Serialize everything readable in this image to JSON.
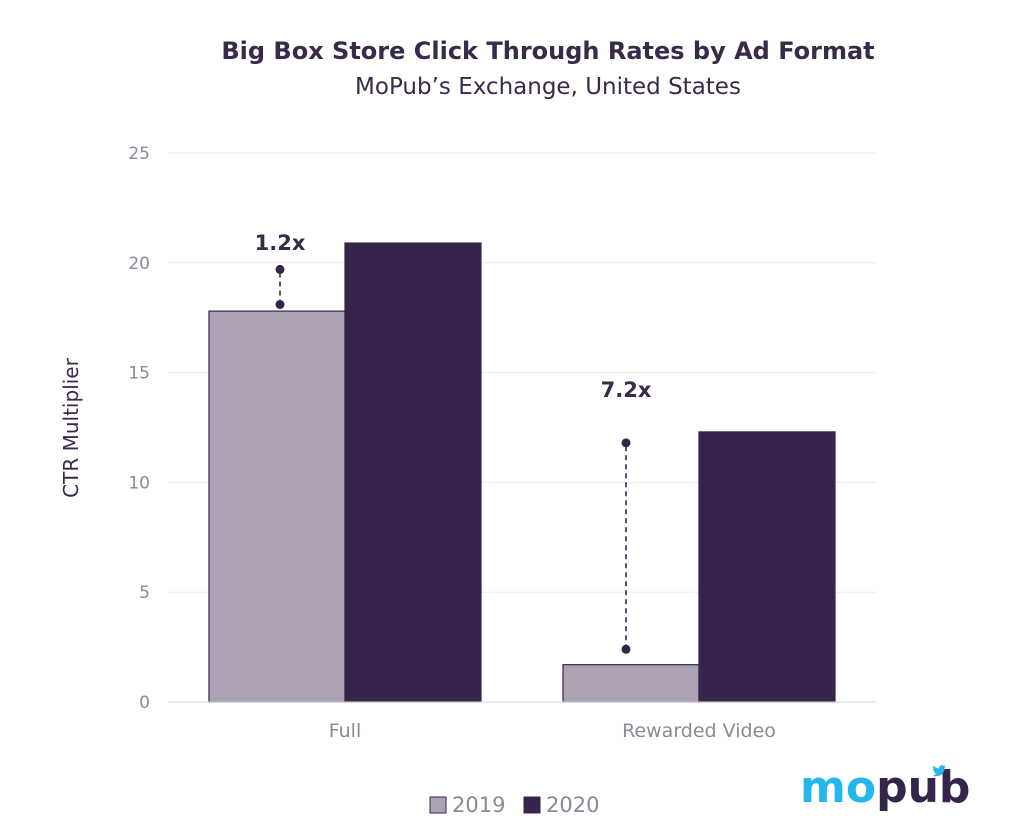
{
  "colors": {
    "series_2019": "#ada2b3",
    "series_2020": "#37244b",
    "text_dark": "#3a2a4a",
    "text_gray": "#8a8a96",
    "grid": "#ececef",
    "logo_blue": "#24b6ec",
    "logo_purple": "#36254a"
  },
  "logo": {
    "text_mo": "mo",
    "text_pub": "pub",
    "icon": "twitter-bird-icon"
  },
  "chart_data": {
    "type": "bar",
    "title": "Big Box Store Click Through Rates by Ad Format",
    "subtitle": "MoPub’s Exchange, United States",
    "xlabel": "",
    "ylabel": "CTR Multiplier",
    "ylim": [
      0,
      25
    ],
    "yticks": [
      "0",
      "5",
      "10",
      "15",
      "20",
      "25"
    ],
    "categories": [
      "Full",
      "Rewarded Video"
    ],
    "series": [
      {
        "name": "2019",
        "values": [
          17.8,
          1.7
        ]
      },
      {
        "name": "2020",
        "values": [
          20.9,
          12.3
        ]
      }
    ],
    "annotations": [
      {
        "category": "Full",
        "label": "1.2x",
        "y_from": 18.1,
        "y_to": 19.7
      },
      {
        "category": "Rewarded Video",
        "label": "7.2x",
        "y_from": 2.4,
        "y_to": 11.8
      }
    ],
    "grid": true,
    "legend_position": "bottom"
  }
}
